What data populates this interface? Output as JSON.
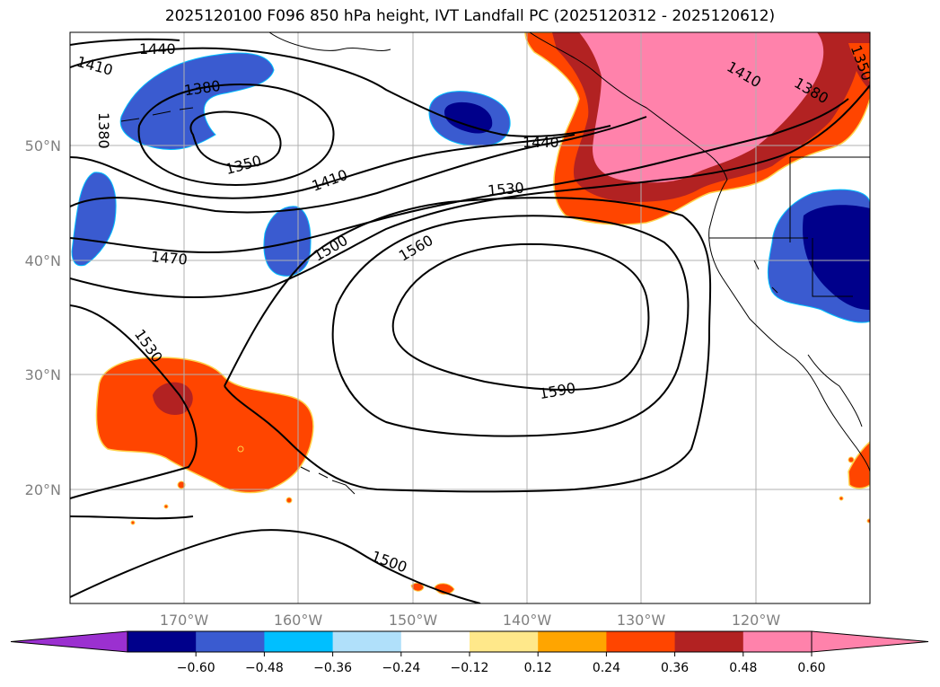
{
  "title": "2025120100 F096 850 hPa height, IVT Landfall PC (2025120312 - 2025120612)",
  "map": {
    "lat_labels": [
      "50°N",
      "40°N",
      "30°N",
      "20°N"
    ],
    "lon_labels": [
      "170°W",
      "160°W",
      "150°W",
      "140°W",
      "130°W",
      "120°W"
    ],
    "contour_labels": [
      "1440",
      "1410",
      "1380",
      "1380",
      "1350",
      "1410",
      "1470",
      "1500",
      "1440",
      "1530",
      "1560",
      "1590",
      "1530",
      "1500",
      "1410",
      "1380",
      "1350"
    ]
  },
  "colorbar": {
    "ticks": [
      "-0.60",
      "-0.48",
      "-0.36",
      "-0.24",
      "-0.12",
      "0.12",
      "0.24",
      "0.36",
      "0.48",
      "0.60"
    ],
    "colors": [
      "#9b30d0",
      "#00008b",
      "#3a5bd0",
      "#00bfff",
      "#b0e0fa",
      "#ffffff",
      "#ffe88a",
      "#ffa500",
      "#ff4500",
      "#b22222",
      "#ff82ab",
      "#ff82ab"
    ],
    "extend": "both"
  }
}
